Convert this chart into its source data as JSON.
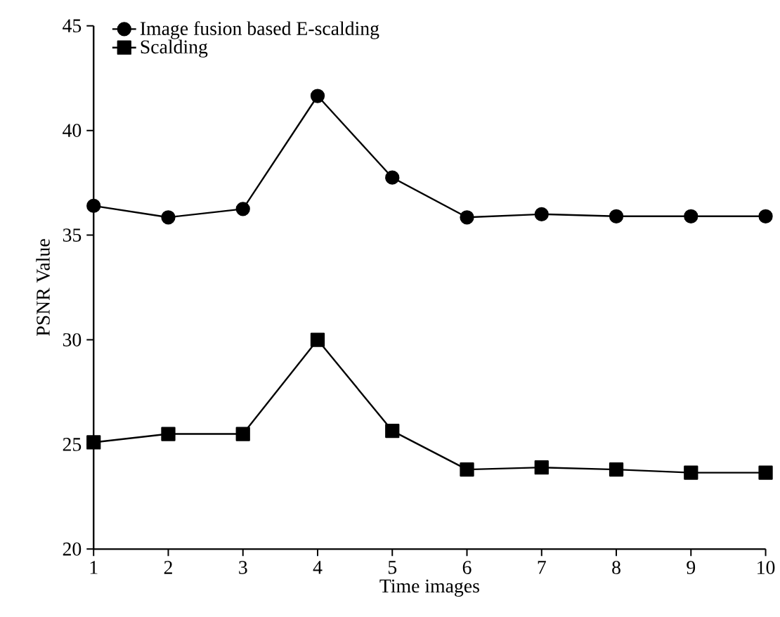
{
  "chart_data": {
    "type": "line",
    "xlabel": "Time images",
    "ylabel": "PSNR Value",
    "x": [
      1,
      2,
      3,
      4,
      5,
      6,
      7,
      8,
      9,
      10
    ],
    "series": [
      {
        "name": "Image fusion based E-scalding",
        "color": "#000000",
        "marker": "circle",
        "values": [
          36.4,
          35.85,
          36.25,
          41.65,
          37.75,
          35.85,
          36.0,
          35.9,
          35.9,
          35.9
        ]
      },
      {
        "name": "Scalding",
        "color": "#000000",
        "marker": "square",
        "values": [
          25.1,
          25.5,
          25.5,
          30.0,
          25.65,
          23.8,
          23.9,
          23.8,
          23.65,
          23.65
        ]
      }
    ],
    "xlim": [
      1,
      10
    ],
    "ylim": [
      20,
      45
    ],
    "xticks": [
      1,
      2,
      3,
      4,
      5,
      6,
      7,
      8,
      9,
      10
    ],
    "yticks": [
      20,
      25,
      30,
      35,
      40,
      45
    ],
    "grid": false,
    "legend": "top left",
    "line_style": "solid"
  }
}
